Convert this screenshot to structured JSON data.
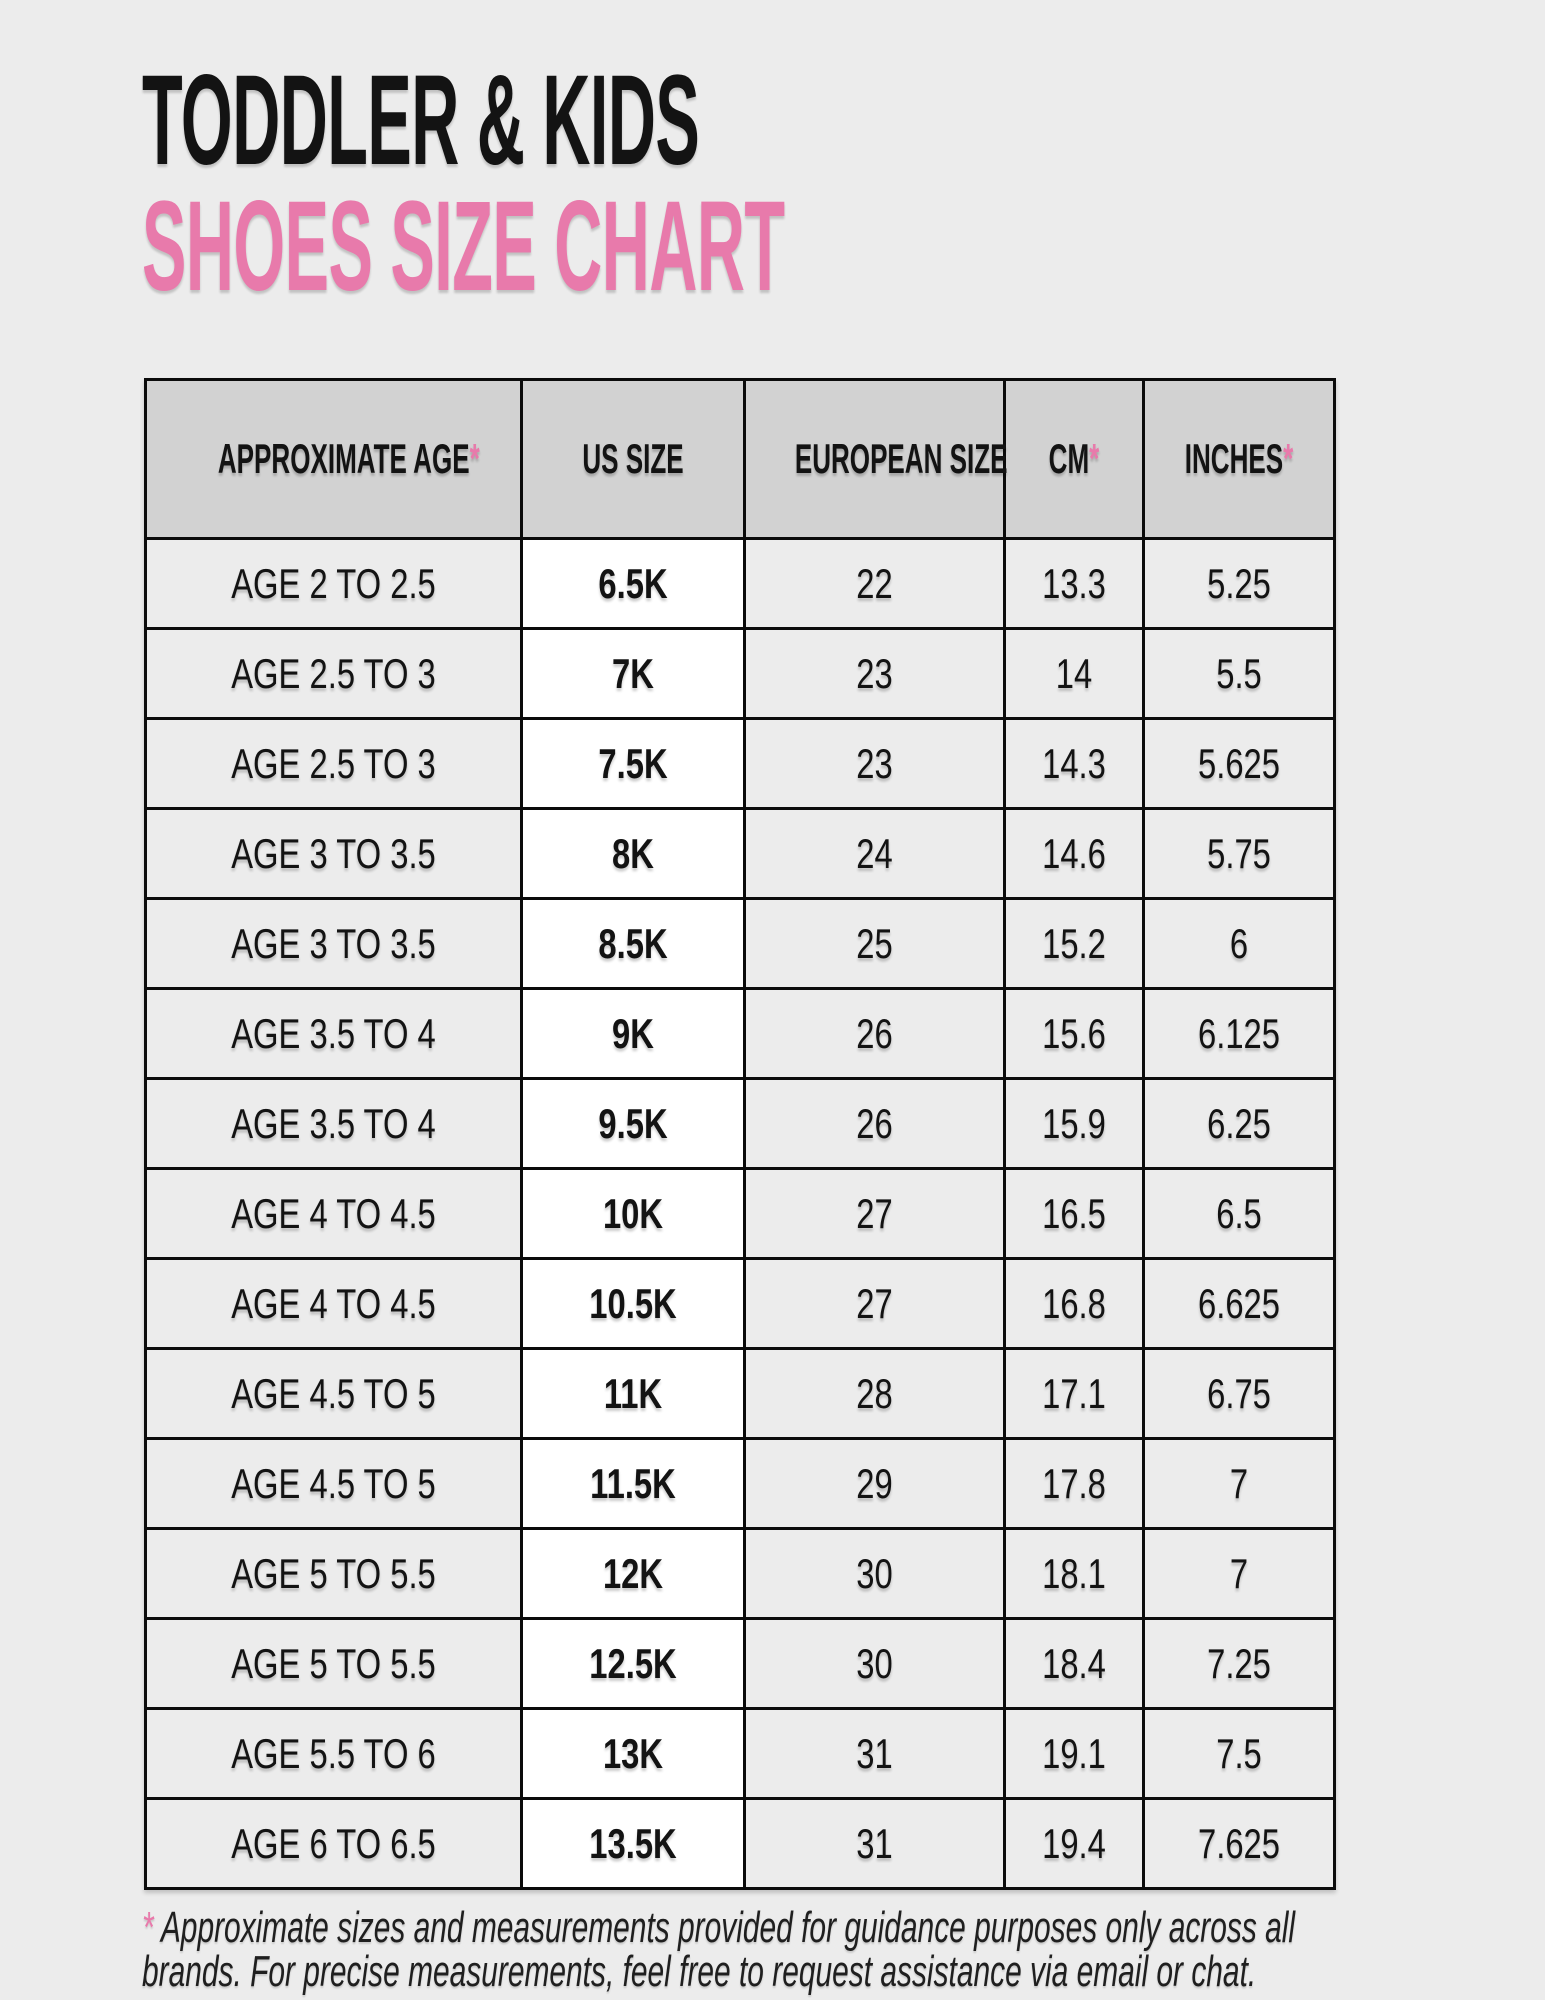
{
  "page": {
    "background": "#ececec",
    "accent_pink": "#e87aab",
    "header_gray": "#d2d2d2"
  },
  "header": {
    "title_line1": "TODDLER & KIDS",
    "title_line2": "SHOES SIZE CHART"
  },
  "table": {
    "headers": [
      {
        "label": "APPROXIMATE AGE",
        "asterisk": "*"
      },
      {
        "label": "US SIZE",
        "asterisk": ""
      },
      {
        "label": "EUROPEAN SIZE",
        "asterisk": ""
      },
      {
        "label": "CM",
        "asterisk": "*"
      },
      {
        "label": "INCHES",
        "asterisk": "*"
      }
    ]
  },
  "chart_data": {
    "type": "table",
    "title": "TODDLER & KIDS SHOES SIZE CHART",
    "columns": [
      "APPROXIMATE AGE",
      "US SIZE",
      "EUROPEAN SIZE",
      "CM",
      "INCHES"
    ],
    "rows": [
      [
        "AGE 2 TO 2.5",
        "6.5K",
        "22",
        "13.3",
        "5.25"
      ],
      [
        "AGE 2.5 TO 3",
        "7K",
        "23",
        "14",
        "5.5"
      ],
      [
        "AGE 2.5 TO 3",
        "7.5K",
        "23",
        "14.3",
        "5.625"
      ],
      [
        "AGE 3 TO 3.5",
        "8K",
        "24",
        "14.6",
        "5.75"
      ],
      [
        "AGE 3 TO 3.5",
        "8.5K",
        "25",
        "15.2",
        "6"
      ],
      [
        "AGE 3.5 TO 4",
        "9K",
        "26",
        "15.6",
        "6.125"
      ],
      [
        "AGE 3.5 TO 4",
        "9.5K",
        "26",
        "15.9",
        "6.25"
      ],
      [
        "AGE 4 TO 4.5",
        "10K",
        "27",
        "16.5",
        "6.5"
      ],
      [
        "AGE 4 TO 4.5",
        "10.5K",
        "27",
        "16.8",
        "6.625"
      ],
      [
        "AGE 4.5 TO 5",
        "11K",
        "28",
        "17.1",
        "6.75"
      ],
      [
        "AGE 4.5 TO 5",
        "11.5K",
        "29",
        "17.8",
        "7"
      ],
      [
        "AGE 5 TO 5.5",
        "12K",
        "30",
        "18.1",
        "7"
      ],
      [
        "AGE 5 TO 5.5",
        "12.5K",
        "30",
        "18.4",
        "7.25"
      ],
      [
        "AGE 5.5 TO 6",
        "13K",
        "31",
        "19.1",
        "7.5"
      ],
      [
        "AGE 6 TO 6.5",
        "13.5K",
        "31",
        "19.4",
        "7.625"
      ]
    ]
  },
  "footnote": {
    "asterisk": "*",
    "text": "Approximate sizes and measurements provided for guidance purposes only across all brands. For precise measurements, feel free to request assistance via email or chat."
  }
}
